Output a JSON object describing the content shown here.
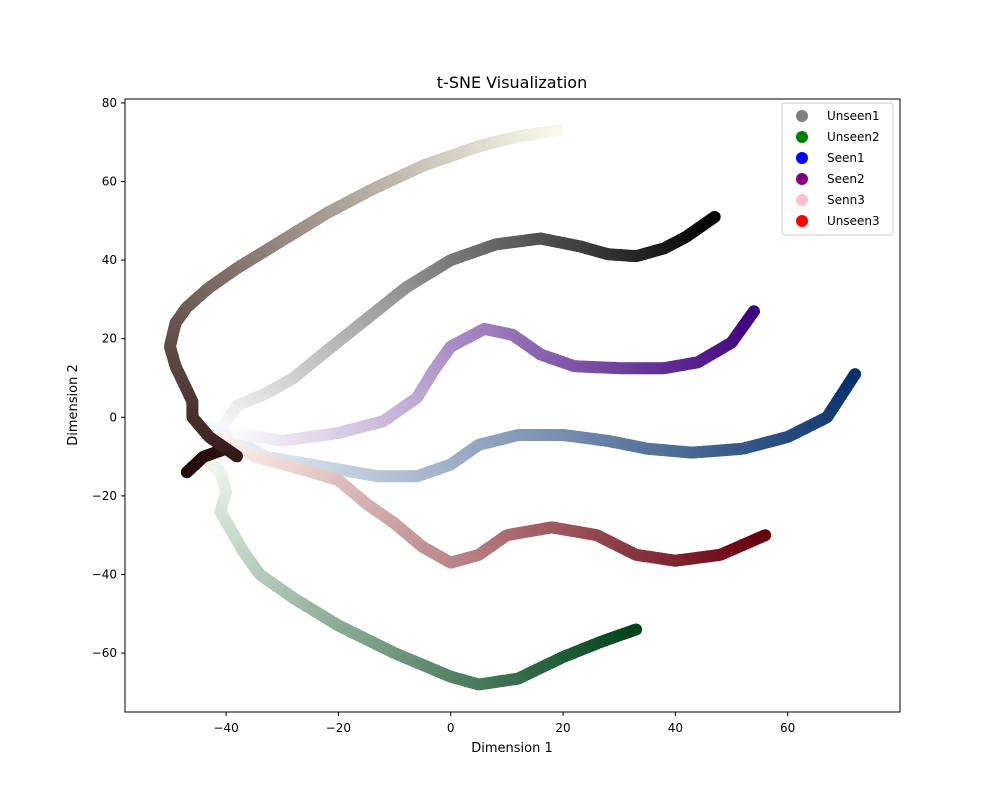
{
  "chart_data": {
    "type": "scatter",
    "title": "t-SNE Visualization",
    "xlabel": "Dimension 1",
    "ylabel": "Dimension 2",
    "xlim": [
      -58,
      80
    ],
    "ylim": [
      -75,
      81
    ],
    "xticks": [
      -40,
      -20,
      0,
      20,
      40,
      60
    ],
    "yticks": [
      -60,
      -40,
      -20,
      0,
      20,
      40,
      60,
      80
    ],
    "grid": false,
    "legend_position": "top-right",
    "legend": [
      {
        "label": "Unseen1",
        "color": "#808080"
      },
      {
        "label": "Unseen2",
        "color": "#008000"
      },
      {
        "label": "Seen1",
        "color": "#0000ff"
      },
      {
        "label": "Seen2",
        "color": "#800080"
      },
      {
        "label": "Senn3",
        "color": "#ffc0cb"
      },
      {
        "label": "Unseen3",
        "color": "#ff0000"
      }
    ],
    "series": [
      {
        "colormap": "Greys",
        "start_color": "#ffffff",
        "end_color": "#000000",
        "path": [
          [
            -42,
            -5
          ],
          [
            -38,
            3
          ],
          [
            -33,
            6
          ],
          [
            -28,
            10
          ],
          [
            -22,
            17
          ],
          [
            -15,
            25
          ],
          [
            -8,
            33
          ],
          [
            0,
            40
          ],
          [
            8,
            44
          ],
          [
            16,
            45.5
          ],
          [
            23,
            43.5
          ],
          [
            28,
            41.5
          ],
          [
            33,
            41
          ],
          [
            38,
            43
          ],
          [
            42,
            46
          ],
          [
            47,
            51
          ]
        ]
      },
      {
        "colormap": "Greens",
        "start_color": "#f7fcf5",
        "end_color": "#00441b",
        "path": [
          [
            -45,
            -9
          ],
          [
            -41,
            -14
          ],
          [
            -40,
            -19
          ],
          [
            -41,
            -24
          ],
          [
            -39,
            -29
          ],
          [
            -37,
            -34
          ],
          [
            -34,
            -40
          ],
          [
            -28,
            -46
          ],
          [
            -20,
            -53
          ],
          [
            -10,
            -60
          ],
          [
            0,
            -66
          ],
          [
            5,
            -68
          ],
          [
            12,
            -66.5
          ],
          [
            20,
            -61
          ],
          [
            27,
            -57
          ],
          [
            33,
            -54
          ]
        ]
      },
      {
        "colormap": "Blues",
        "start_color": "#f7fbff",
        "end_color": "#08306b",
        "path": [
          [
            -43,
            -2
          ],
          [
            -38,
            -6
          ],
          [
            -33,
            -10
          ],
          [
            -13,
            -15
          ],
          [
            -6,
            -15
          ],
          [
            0,
            -12
          ],
          [
            5,
            -7
          ],
          [
            12,
            -4.5
          ],
          [
            20,
            -4.5
          ],
          [
            28,
            -6
          ],
          [
            35,
            -8
          ],
          [
            43,
            -9
          ],
          [
            52,
            -8
          ],
          [
            60,
            -5
          ],
          [
            67,
            0
          ],
          [
            72,
            11
          ]
        ]
      },
      {
        "colormap": "Purples",
        "start_color": "#fcfbfd",
        "end_color": "#3f007d",
        "path": [
          [
            -38,
            -4
          ],
          [
            -30,
            -6
          ],
          [
            -20,
            -4
          ],
          [
            -12,
            -1
          ],
          [
            -6,
            5
          ],
          [
            -3,
            12
          ],
          [
            0,
            18
          ],
          [
            6,
            22.5
          ],
          [
            11,
            21
          ],
          [
            16,
            16
          ],
          [
            22,
            13
          ],
          [
            30,
            12.5
          ],
          [
            38,
            12.5
          ],
          [
            44,
            14
          ],
          [
            50,
            19
          ],
          [
            54,
            27
          ]
        ]
      },
      {
        "colormap": "Reds",
        "start_color": "#fff5f0",
        "end_color": "#67000d",
        "path": [
          [
            -41,
            -5
          ],
          [
            -35,
            -10
          ],
          [
            -27,
            -13
          ],
          [
            -20,
            -16
          ],
          [
            -15,
            -22
          ],
          [
            -10,
            -27
          ],
          [
            -5,
            -33
          ],
          [
            0,
            -37
          ],
          [
            5,
            -35
          ],
          [
            10,
            -30
          ],
          [
            18,
            -28
          ],
          [
            26,
            -30
          ],
          [
            33,
            -35
          ],
          [
            40,
            -36.5
          ],
          [
            48,
            -35
          ],
          [
            56,
            -30
          ]
        ]
      },
      {
        "colormap": "pink",
        "start_color": "#1e0000",
        "end_color": "#f8f8ea",
        "path": [
          [
            -47,
            -14
          ],
          [
            -44,
            -10
          ],
          [
            -40,
            -8
          ],
          [
            -38,
            -10
          ],
          [
            -43,
            -5
          ],
          [
            -46,
            0
          ],
          [
            -46,
            4
          ],
          [
            -49,
            13
          ],
          [
            -50,
            18
          ],
          [
            -49,
            24
          ],
          [
            -47,
            28
          ],
          [
            -43,
            33
          ],
          [
            -38,
            38
          ],
          [
            -30,
            45
          ],
          [
            -22,
            52
          ],
          [
            -14,
            58
          ],
          [
            -5,
            64
          ],
          [
            5,
            69
          ],
          [
            12,
            71.5
          ],
          [
            19,
            73
          ]
        ]
      }
    ]
  }
}
